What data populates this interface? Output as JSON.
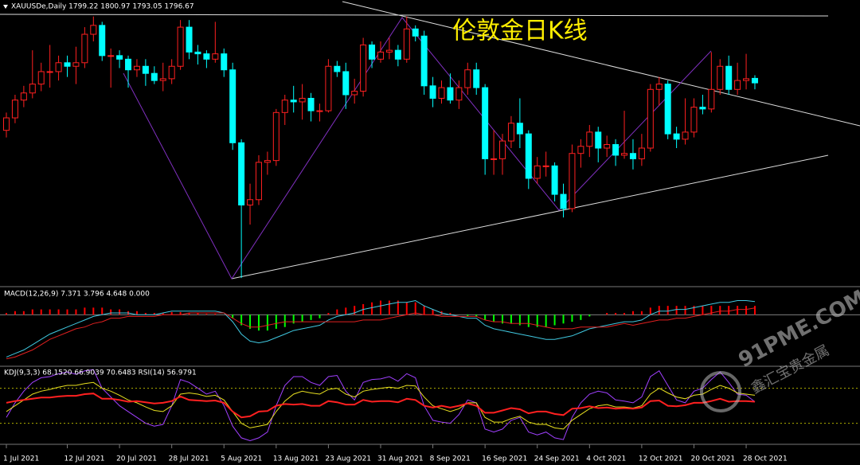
{
  "chart_data": [
    {
      "type": "candlestick",
      "title": "伦敦金日K线",
      "header": "XAUUSDe,Daily 1799.22 1800.97 1793.05 1796.67",
      "categories": [
        "1 Jul 2021",
        null,
        null,
        null,
        null,
        null,
        null,
        "12 Jul 2021",
        null,
        null,
        null,
        null,
        null,
        "20 Jul 2021",
        null,
        null,
        null,
        null,
        null,
        "28 Jul 2021",
        null,
        null,
        null,
        null,
        null,
        "5 Aug 2021",
        null,
        null,
        null,
        null,
        null,
        "13 Aug 2021",
        null,
        null,
        null,
        null,
        null,
        "23 Aug 2021",
        null,
        null,
        null,
        null,
        null,
        "31 Aug 2021",
        null,
        null,
        null,
        null,
        null,
        "8 Sep 2021",
        null,
        null,
        null,
        null,
        null,
        "16 Sep 2021",
        null,
        null,
        null,
        null,
        null,
        "24 Sep 2021",
        null,
        null,
        null,
        null,
        null,
        "4 Oct 2021",
        null,
        null,
        null,
        null,
        null,
        "12 Oct 2021",
        null,
        null,
        null,
        null,
        null,
        "20 Oct 2021",
        null,
        null,
        null,
        null,
        null,
        "28 Oct 2021",
        null
      ],
      "open": [
        1770,
        1777,
        1787,
        1791,
        1796,
        1803,
        1803,
        1808,
        1806,
        1808,
        1824,
        1829,
        1812,
        1812,
        1810,
        1804,
        1806,
        1802,
        1798,
        1799,
        1806,
        1828,
        1814,
        1813,
        1810,
        1813,
        1804,
        1763,
        1728,
        1731,
        1752,
        1753,
        1780,
        1787,
        1786,
        1788,
        1781,
        1781,
        1806,
        1803,
        1790,
        1792,
        1818,
        1810,
        1814,
        1815,
        1810,
        1827,
        1823,
        1795,
        1788,
        1794,
        1787,
        1794,
        1804,
        1794,
        1754,
        1754,
        1764,
        1774,
        1768,
        1743,
        1750,
        1750,
        1734,
        1726,
        1757,
        1761,
        1769,
        1760,
        1762,
        1756,
        1757,
        1754,
        1760,
        1793,
        1796,
        1768,
        1765,
        1769,
        1783,
        1782,
        1793,
        1806,
        1793,
        1798,
        1799.22
      ],
      "high": [
        1780,
        1790,
        1795,
        1815,
        1808,
        1818,
        1812,
        1812,
        1817,
        1828,
        1834,
        1831,
        1816,
        1815,
        1812,
        1810,
        1810,
        1806,
        1808,
        1810,
        1832,
        1832,
        1818,
        1815,
        1831,
        1816,
        1808,
        1765,
        1740,
        1756,
        1758,
        1782,
        1790,
        1795,
        1796,
        1791,
        1785,
        1810,
        1809,
        1808,
        1799,
        1822,
        1820,
        1820,
        1822,
        1818,
        1834,
        1829,
        1826,
        1800,
        1798,
        1802,
        1798,
        1808,
        1808,
        1796,
        1770,
        1768,
        1778,
        1788,
        1770,
        1755,
        1758,
        1752,
        1740,
        1762,
        1765,
        1773,
        1772,
        1767,
        1765,
        1781,
        1765,
        1768,
        1796,
        1800,
        1798,
        1772,
        1788,
        1788,
        1790,
        1814,
        1810,
        1812,
        1808,
        1813,
        1800.97
      ],
      "low": [
        1766,
        1774,
        1783,
        1788,
        1792,
        1794,
        1798,
        1800,
        1796,
        1805,
        1820,
        1809,
        1794,
        1805,
        1794,
        1800,
        1795,
        1796,
        1792,
        1796,
        1804,
        1810,
        1807,
        1805,
        1808,
        1800,
        1759,
        1687,
        1717,
        1728,
        1745,
        1750,
        1773,
        1780,
        1776,
        1775,
        1775,
        1780,
        1800,
        1782,
        1785,
        1789,
        1805,
        1808,
        1810,
        1806,
        1808,
        1820,
        1790,
        1783,
        1785,
        1785,
        1782,
        1790,
        1790,
        1745,
        1745,
        1745,
        1760,
        1760,
        1737,
        1740,
        1744,
        1730,
        1721,
        1724,
        1749,
        1755,
        1752,
        1755,
        1750,
        1754,
        1748,
        1750,
        1758,
        1784,
        1765,
        1760,
        1762,
        1766,
        1779,
        1780,
        1790,
        1790,
        1790,
        1793,
        1793.05
      ],
      "close": [
        1777,
        1787,
        1791,
        1796,
        1803,
        1803,
        1808,
        1806,
        1808,
        1824,
        1829,
        1812,
        1812,
        1810,
        1804,
        1806,
        1802,
        1798,
        1799,
        1806,
        1828,
        1814,
        1813,
        1810,
        1813,
        1804,
        1763,
        1728,
        1731,
        1752,
        1753,
        1780,
        1787,
        1786,
        1788,
        1781,
        1781,
        1806,
        1803,
        1790,
        1792,
        1818,
        1810,
        1814,
        1815,
        1810,
        1827,
        1823,
        1795,
        1788,
        1794,
        1787,
        1794,
        1804,
        1794,
        1754,
        1754,
        1764,
        1774,
        1768,
        1743,
        1750,
        1750,
        1734,
        1726,
        1757,
        1761,
        1769,
        1760,
        1762,
        1756,
        1757,
        1754,
        1760,
        1793,
        1796,
        1768,
        1765,
        1769,
        1783,
        1782,
        1793,
        1806,
        1793,
        1798,
        1799,
        1796.67
      ],
      "up_color": "#ff2020",
      "down_color": "#00ffff",
      "ylim": [
        1683,
        1837
      ]
    },
    {
      "type": "bar",
      "title": "MACD(12,26,9) 7.371 3.796 4.648 0.000",
      "values": [
        1,
        2,
        2,
        3,
        3,
        3,
        3,
        3,
        3,
        4,
        4,
        4,
        3,
        3,
        2,
        2,
        1,
        1,
        1,
        1.5,
        1.5,
        1,
        1,
        0.5,
        0.5,
        0,
        -2,
        -6,
        -8,
        -9,
        -9,
        -8,
        -7,
        -5,
        -4,
        -3,
        -2,
        1,
        3,
        4,
        5,
        6,
        7,
        8,
        8,
        8,
        7,
        7,
        5,
        3,
        2,
        1,
        0,
        -1,
        -1,
        -3,
        -4,
        -5,
        -5,
        -6,
        -7,
        -7,
        -7,
        -6,
        -5,
        -4,
        -3,
        -1,
        0,
        1,
        1,
        1,
        2,
        2,
        4,
        5,
        5,
        5,
        5,
        5,
        5,
        5,
        5,
        5,
        5,
        5,
        5
      ],
      "up_color": "#ff0000",
      "down_color": "#00ff00",
      "lines": [
        {
          "color": "#40c8e0",
          "values": [
            -24,
            -22,
            -20,
            -17,
            -14,
            -11,
            -9,
            -7,
            -5,
            -3,
            -1,
            0,
            1,
            1,
            1,
            0,
            0,
            0,
            1,
            2,
            2,
            2,
            2,
            2,
            2,
            1,
            -4,
            -11,
            -15,
            -16,
            -15,
            -13,
            -11,
            -9,
            -8,
            -7,
            -6,
            -3,
            -1,
            0,
            1,
            3,
            4,
            5,
            6,
            7,
            7,
            8,
            5,
            3,
            1,
            0,
            -1,
            -2,
            -2,
            -6,
            -8,
            -9,
            -10,
            -11,
            -12,
            -13,
            -14,
            -14,
            -13,
            -12,
            -10,
            -8,
            -7,
            -6,
            -5,
            -4,
            -4,
            -3,
            0,
            2,
            2,
            3,
            3,
            4,
            5,
            6,
            7,
            7,
            8,
            8,
            7.4
          ]
        },
        {
          "color": "#e02020",
          "values": [
            -25,
            -24,
            -22,
            -20,
            -17,
            -14,
            -12,
            -10,
            -8,
            -7,
            -5,
            -4,
            -2,
            -2,
            -1,
            -1,
            -1,
            -1,
            0,
            0,
            0,
            1,
            1,
            1,
            1,
            1,
            -2,
            -5,
            -7,
            -7,
            -6,
            -5,
            -4,
            -4,
            -4,
            -4,
            -4,
            -4,
            -4,
            -4,
            -4,
            -3,
            -3,
            -3,
            -2,
            -1,
            0,
            1,
            0,
            0,
            -1,
            -1,
            -1,
            -1,
            -1,
            -3,
            -4,
            -4,
            -5,
            -5,
            -5,
            -6,
            -7,
            -8,
            -8,
            -8,
            -7,
            -7,
            -7,
            -7,
            -6,
            -5,
            -6,
            -5,
            -4,
            -3,
            -3,
            -2,
            -2,
            -1,
            0,
            1,
            2,
            2,
            3,
            3,
            3.8
          ]
        }
      ],
      "ylim": [
        -27,
        15
      ]
    },
    {
      "type": "line",
      "title": "KDJ(9,3,3) 68.1520 66.9039 70.6483  RSI(14) 56.9791",
      "series": [
        {
          "color": "#a040ff",
          "values": [
            30,
            55,
            75,
            90,
            98,
            100,
            105,
            108,
            104,
            110,
            112,
            80,
            65,
            50,
            40,
            30,
            20,
            15,
            18,
            50,
            95,
            90,
            80,
            70,
            75,
            50,
            15,
            -5,
            -10,
            -5,
            5,
            50,
            85,
            100,
            100,
            90,
            85,
            100,
            102,
            75,
            60,
            90,
            95,
            96,
            100,
            92,
            105,
            98,
            50,
            25,
            22,
            20,
            35,
            60,
            55,
            10,
            5,
            10,
            25,
            30,
            5,
            0,
            5,
            -5,
            -8,
            30,
            55,
            70,
            75,
            72,
            60,
            58,
            55,
            65,
            100,
            110,
            85,
            60,
            55,
            75,
            80,
            95,
            108,
            90,
            70,
            68,
            57
          ]
        },
        {
          "color": "#e8e020",
          "values": [
            40,
            50,
            60,
            70,
            75,
            78,
            82,
            85,
            85,
            88,
            90,
            80,
            75,
            68,
            60,
            55,
            48,
            42,
            40,
            50,
            70,
            72,
            70,
            66,
            68,
            60,
            40,
            20,
            12,
            15,
            18,
            40,
            58,
            70,
            75,
            72,
            70,
            78,
            80,
            70,
            65,
            75,
            78,
            80,
            82,
            80,
            85,
            84,
            65,
            50,
            45,
            40,
            45,
            55,
            55,
            30,
            22,
            22,
            28,
            32,
            22,
            18,
            18,
            12,
            10,
            25,
            35,
            45,
            50,
            52,
            48,
            48,
            46,
            50,
            70,
            80,
            72,
            65,
            62,
            68,
            70,
            78,
            85,
            80,
            72,
            70,
            68
          ]
        },
        {
          "color": "#ff2020",
          "values": [
            55,
            58,
            60,
            62,
            64,
            64,
            66,
            67,
            67,
            70,
            71,
            62,
            62,
            60,
            57,
            58,
            56,
            54,
            55,
            58,
            66,
            60,
            59,
            58,
            59,
            55,
            40,
            30,
            32,
            40,
            41,
            50,
            53,
            52,
            53,
            50,
            50,
            58,
            56,
            52,
            52,
            60,
            57,
            58,
            58,
            56,
            62,
            60,
            50,
            47,
            50,
            47,
            50,
            54,
            50,
            38,
            38,
            42,
            46,
            44,
            37,
            40,
            40,
            36,
            34,
            45,
            46,
            49,
            46,
            47,
            45,
            46,
            45,
            47,
            58,
            59,
            50,
            49,
            51,
            55,
            55,
            58,
            62,
            57,
            58,
            58,
            57
          ]
        }
      ],
      "levels": [
        80,
        20
      ],
      "level_color": "#b0b000",
      "ylim": [
        -12,
        115
      ]
    }
  ],
  "watermark": {
    "site": "91PME.COM",
    "brand": "鑫汇宝贵金属"
  }
}
